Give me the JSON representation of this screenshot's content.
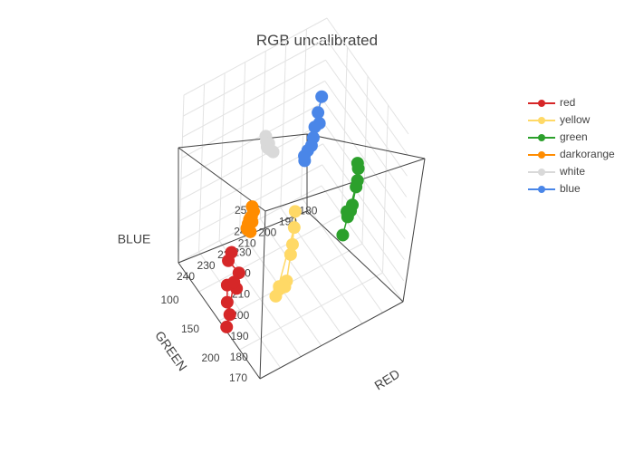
{
  "chart_data": {
    "type": "scatter3d",
    "title": "RGB uncalibrated",
    "axes": {
      "x": {
        "title": "RED",
        "range": [
          170,
          240
        ],
        "ticks": [
          180,
          190,
          200,
          210,
          220,
          230,
          240
        ]
      },
      "y": {
        "title": "GREEN",
        "range": [
          50,
          250
        ],
        "ticks": [
          100,
          150,
          200
        ]
      },
      "z": {
        "title": "BLUE",
        "range": [
          170,
          250
        ],
        "ticks": [
          170,
          180,
          190,
          200,
          210,
          220,
          230,
          240,
          250
        ]
      }
    },
    "grid": true,
    "legend_position": "top-right",
    "series": [
      {
        "name": "red",
        "color": "#d62728",
        "x": [
          235,
          236,
          232,
          234,
          237,
          238,
          238,
          240,
          235
        ],
        "y": [
          150,
          148,
          155,
          160,
          152,
          158,
          165,
          168,
          158
        ],
        "z": [
          200,
          196,
          190,
          185,
          186,
          180,
          176,
          172,
          188
        ]
      },
      {
        "name": "yellow",
        "color": "#ffd966",
        "x": [
          212,
          213,
          214,
          216,
          217,
          220,
          220,
          222,
          212
        ],
        "y": [
          188,
          189,
          190,
          192,
          193,
          194,
          195,
          196,
          187
        ],
        "z": [
          218,
          203,
          199,
          188,
          186,
          188,
          187,
          185,
          210
        ]
      },
      {
        "name": "green",
        "color": "#2ca02c",
        "x": [
          180,
          180,
          181,
          183,
          184,
          186,
          186,
          189,
          180
        ],
        "y": [
          180,
          182,
          183,
          185,
          186,
          187,
          189,
          193,
          181
        ],
        "z": [
          222,
          220,
          212,
          205,
          203,
          204,
          202,
          196,
          214
        ]
      },
      {
        "name": "darkorange",
        "color": "#ff8c00",
        "x": [
          225,
          224,
          226,
          226,
          227,
          228,
          228,
          229,
          227,
          225
        ],
        "y": [
          148,
          147,
          150,
          152,
          152,
          154,
          153,
          156,
          155,
          149
        ],
        "z": [
          216,
          213,
          212,
          213,
          212,
          211,
          208,
          210,
          207,
          209
        ]
      },
      {
        "name": "white",
        "color": "#d9d9d9",
        "x": [
          213,
          213,
          212,
          213,
          213,
          212,
          211
        ],
        "y": [
          118,
          120,
          121,
          122,
          124,
          125,
          127
        ],
        "z": [
          235,
          233,
          232,
          231,
          231,
          230,
          229
        ]
      },
      {
        "name": "blue",
        "color": "#4a86e8",
        "x": [
          186,
          188,
          190,
          188,
          191,
          192,
          194,
          196,
          196
        ],
        "y": [
          119,
          121,
          124,
          125,
          126,
          127,
          128,
          130,
          131
        ],
        "z": [
          240,
          234,
          229,
          230,
          225,
          222,
          221,
          220,
          218
        ]
      }
    ]
  }
}
